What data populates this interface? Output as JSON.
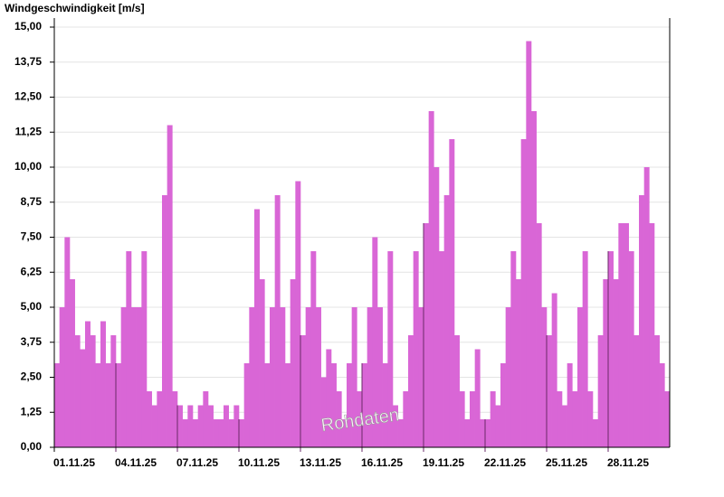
{
  "chart_data": {
    "type": "bar",
    "title": "Windgeschwindigkeit [m/s]",
    "watermark": "Rohdaten",
    "color": "#d966d6",
    "grid": true,
    "ylim": [
      0,
      15
    ],
    "yticks": [
      {
        "value": 0,
        "label": "0,00"
      },
      {
        "value": 1.25,
        "label": "1,25"
      },
      {
        "value": 2.5,
        "label": "2,50"
      },
      {
        "value": 3.75,
        "label": "3,75"
      },
      {
        "value": 5,
        "label": "5,00"
      },
      {
        "value": 6.25,
        "label": "6,25"
      },
      {
        "value": 7.5,
        "label": "7,50"
      },
      {
        "value": 8.75,
        "label": "8,75"
      },
      {
        "value": 10,
        "label": "10,00"
      },
      {
        "value": 11.25,
        "label": "11,25"
      },
      {
        "value": 12.5,
        "label": "12,50"
      },
      {
        "value": 13.75,
        "label": "13,75"
      },
      {
        "value": 15,
        "label": "15,00"
      }
    ],
    "categories": [
      "01.11.25",
      null,
      null,
      null,
      null,
      null,
      null,
      null,
      null,
      null,
      null,
      null,
      "04.11.25",
      null,
      null,
      null,
      null,
      null,
      null,
      null,
      null,
      null,
      null,
      null,
      "07.11.25",
      null,
      null,
      null,
      null,
      null,
      null,
      null,
      null,
      null,
      null,
      null,
      "10.11.25",
      null,
      null,
      null,
      null,
      null,
      null,
      null,
      null,
      null,
      null,
      null,
      "13.11.25",
      null,
      null,
      null,
      null,
      null,
      null,
      null,
      null,
      null,
      null,
      null,
      "16.11.25",
      null,
      null,
      null,
      null,
      null,
      null,
      null,
      null,
      null,
      null,
      null,
      "19.11.25",
      null,
      null,
      null,
      null,
      null,
      null,
      null,
      null,
      null,
      null,
      null,
      "22.11.25",
      null,
      null,
      null,
      null,
      null,
      null,
      null,
      null,
      null,
      null,
      null,
      "25.11.25",
      null,
      null,
      null,
      null,
      null,
      null,
      null,
      null,
      null,
      null,
      null,
      "28.11.25",
      null,
      null,
      null,
      null,
      null,
      null,
      null,
      null,
      null,
      null,
      null
    ],
    "values": [
      3,
      5,
      7.5,
      6,
      4,
      3.5,
      4.5,
      4,
      3,
      4.5,
      3,
      4,
      3,
      5,
      7,
      5,
      5,
      7,
      2,
      1.5,
      2,
      9,
      11.5,
      2,
      1.5,
      1,
      1.5,
      1,
      1.5,
      2,
      1.5,
      1,
      1,
      1.5,
      1,
      1.5,
      1,
      3,
      5,
      8.5,
      6,
      3,
      5,
      9,
      5,
      3,
      6,
      9.5,
      4,
      5,
      7,
      5,
      2.5,
      3.5,
      3,
      2,
      1,
      3,
      5,
      2,
      3,
      5,
      7.5,
      5,
      3,
      7,
      1.5,
      1,
      2,
      4,
      7,
      5,
      8,
      12,
      10,
      7,
      9,
      11,
      4,
      2,
      1,
      2,
      3.5,
      1,
      1,
      2,
      1.5,
      3,
      5,
      7,
      6,
      11,
      14.5,
      12,
      8,
      5,
      4,
      5.5,
      2,
      1.5,
      3,
      2,
      5,
      7,
      2,
      1,
      4,
      6,
      7,
      6,
      8,
      8,
      7,
      4,
      9,
      10,
      8,
      4,
      3,
      2
    ]
  }
}
